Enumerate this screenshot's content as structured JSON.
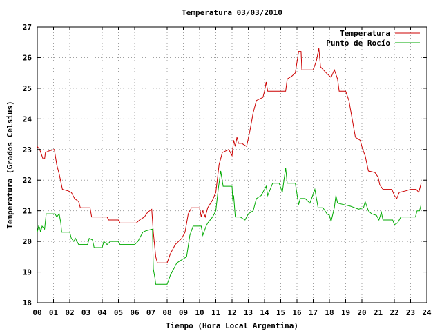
{
  "chart_data": {
    "type": "line",
    "title": "Temperatura 03/03/2010",
    "xlabel": "Tiempo (Hora Local Argentina)",
    "ylabel": "Temperatura (Grados Celsius)",
    "xlim": [
      0,
      24
    ],
    "ylim": [
      18,
      27
    ],
    "x_ticks": [
      "00",
      "01",
      "02",
      "03",
      "04",
      "05",
      "06",
      "07",
      "08",
      "09",
      "10",
      "11",
      "12",
      "13",
      "14",
      "15",
      "16",
      "17",
      "18",
      "19",
      "20",
      "21",
      "22",
      "23",
      "24"
    ],
    "y_ticks": [
      "18",
      "19",
      "20",
      "21",
      "22",
      "23",
      "24",
      "25",
      "26",
      "27"
    ],
    "grid": true,
    "legend_position": "top-right",
    "series": [
      {
        "name": "Temperatura",
        "color": "#cc0000",
        "points": [
          [
            0.0,
            23.1
          ],
          [
            0.15,
            23.0
          ],
          [
            0.35,
            22.7
          ],
          [
            0.45,
            22.7
          ],
          [
            0.5,
            22.9
          ],
          [
            0.7,
            22.95
          ],
          [
            1.05,
            23.0
          ],
          [
            1.2,
            22.5
          ],
          [
            1.35,
            22.2
          ],
          [
            1.55,
            21.7
          ],
          [
            1.9,
            21.65
          ],
          [
            2.1,
            21.6
          ],
          [
            2.3,
            21.4
          ],
          [
            2.55,
            21.3
          ],
          [
            2.65,
            21.1
          ],
          [
            3.25,
            21.1
          ],
          [
            3.35,
            20.8
          ],
          [
            4.3,
            20.8
          ],
          [
            4.4,
            20.7
          ],
          [
            5.0,
            20.7
          ],
          [
            5.1,
            20.6
          ],
          [
            6.1,
            20.6
          ],
          [
            6.3,
            20.7
          ],
          [
            6.6,
            20.8
          ],
          [
            6.8,
            20.95
          ],
          [
            7.05,
            21.05
          ],
          [
            7.15,
            20.3
          ],
          [
            7.3,
            19.5
          ],
          [
            7.4,
            19.3
          ],
          [
            8.0,
            19.3
          ],
          [
            8.2,
            19.6
          ],
          [
            8.5,
            19.9
          ],
          [
            8.9,
            20.1
          ],
          [
            9.1,
            20.3
          ],
          [
            9.3,
            20.9
          ],
          [
            9.5,
            21.1
          ],
          [
            10.0,
            21.1
          ],
          [
            10.1,
            20.8
          ],
          [
            10.2,
            21.0
          ],
          [
            10.35,
            20.8
          ],
          [
            10.5,
            21.1
          ],
          [
            10.8,
            21.35
          ],
          [
            11.0,
            21.6
          ],
          [
            11.2,
            22.5
          ],
          [
            11.4,
            22.9
          ],
          [
            11.8,
            23.0
          ],
          [
            12.0,
            22.8
          ],
          [
            12.1,
            23.3
          ],
          [
            12.2,
            23.1
          ],
          [
            12.3,
            23.4
          ],
          [
            12.4,
            23.2
          ],
          [
            12.6,
            23.2
          ],
          [
            12.9,
            23.1
          ],
          [
            13.1,
            23.6
          ],
          [
            13.3,
            24.2
          ],
          [
            13.5,
            24.6
          ],
          [
            13.9,
            24.7
          ],
          [
            14.0,
            24.9
          ],
          [
            14.1,
            25.2
          ],
          [
            14.2,
            24.9
          ],
          [
            15.3,
            24.9
          ],
          [
            15.4,
            25.3
          ],
          [
            15.7,
            25.4
          ],
          [
            15.9,
            25.5
          ],
          [
            16.1,
            26.2
          ],
          [
            16.25,
            26.2
          ],
          [
            16.3,
            25.6
          ],
          [
            17.0,
            25.6
          ],
          [
            17.2,
            25.9
          ],
          [
            17.35,
            26.3
          ],
          [
            17.45,
            25.7
          ],
          [
            17.8,
            25.5
          ],
          [
            18.1,
            25.35
          ],
          [
            18.3,
            25.6
          ],
          [
            18.5,
            25.3
          ],
          [
            18.6,
            24.9
          ],
          [
            19.0,
            24.9
          ],
          [
            19.2,
            24.6
          ],
          [
            19.4,
            24.0
          ],
          [
            19.6,
            23.4
          ],
          [
            19.9,
            23.3
          ],
          [
            20.05,
            23.0
          ],
          [
            20.2,
            22.8
          ],
          [
            20.4,
            22.3
          ],
          [
            20.8,
            22.25
          ],
          [
            21.0,
            22.1
          ],
          [
            21.1,
            21.85
          ],
          [
            21.3,
            21.7
          ],
          [
            21.85,
            21.7
          ],
          [
            22.0,
            21.5
          ],
          [
            22.15,
            21.4
          ],
          [
            22.3,
            21.6
          ],
          [
            22.7,
            21.65
          ],
          [
            23.0,
            21.7
          ],
          [
            23.35,
            21.7
          ],
          [
            23.5,
            21.6
          ],
          [
            23.65,
            21.9
          ]
        ]
      },
      {
        "name": "Punto de Rocío",
        "color": "#00aa00",
        "points": [
          [
            0.0,
            20.3
          ],
          [
            0.08,
            20.5
          ],
          [
            0.15,
            20.45
          ],
          [
            0.2,
            20.3
          ],
          [
            0.3,
            20.5
          ],
          [
            0.45,
            20.4
          ],
          [
            0.55,
            20.9
          ],
          [
            1.1,
            20.9
          ],
          [
            1.2,
            20.8
          ],
          [
            1.35,
            20.9
          ],
          [
            1.45,
            20.6
          ],
          [
            1.5,
            20.3
          ],
          [
            2.0,
            20.3
          ],
          [
            2.1,
            20.1
          ],
          [
            2.25,
            20.0
          ],
          [
            2.35,
            20.1
          ],
          [
            2.55,
            19.9
          ],
          [
            3.1,
            19.9
          ],
          [
            3.2,
            20.1
          ],
          [
            3.4,
            20.05
          ],
          [
            3.5,
            19.8
          ],
          [
            4.0,
            19.8
          ],
          [
            4.1,
            20.0
          ],
          [
            4.3,
            19.9
          ],
          [
            4.5,
            20.0
          ],
          [
            5.0,
            20.0
          ],
          [
            5.1,
            19.9
          ],
          [
            6.0,
            19.9
          ],
          [
            6.2,
            20.0
          ],
          [
            6.5,
            20.3
          ],
          [
            6.7,
            20.35
          ],
          [
            7.1,
            20.4
          ],
          [
            7.15,
            19.1
          ],
          [
            7.25,
            18.8
          ],
          [
            7.3,
            18.6
          ],
          [
            8.0,
            18.6
          ],
          [
            8.2,
            18.9
          ],
          [
            8.4,
            19.1
          ],
          [
            8.6,
            19.3
          ],
          [
            9.2,
            19.5
          ],
          [
            9.4,
            20.2
          ],
          [
            9.6,
            20.5
          ],
          [
            10.1,
            20.5
          ],
          [
            10.2,
            20.2
          ],
          [
            10.4,
            20.5
          ],
          [
            10.5,
            20.6
          ],
          [
            10.8,
            20.8
          ],
          [
            11.0,
            21.0
          ],
          [
            11.15,
            21.7
          ],
          [
            11.3,
            22.3
          ],
          [
            11.45,
            21.8
          ],
          [
            12.0,
            21.8
          ],
          [
            12.05,
            21.3
          ],
          [
            12.1,
            21.5
          ],
          [
            12.2,
            20.8
          ],
          [
            12.5,
            20.8
          ],
          [
            12.8,
            20.7
          ],
          [
            13.0,
            20.9
          ],
          [
            13.3,
            21.0
          ],
          [
            13.5,
            21.4
          ],
          [
            13.8,
            21.5
          ],
          [
            14.1,
            21.8
          ],
          [
            14.2,
            21.5
          ],
          [
            14.5,
            21.9
          ],
          [
            14.9,
            21.9
          ],
          [
            15.1,
            21.6
          ],
          [
            15.2,
            22.0
          ],
          [
            15.3,
            22.4
          ],
          [
            15.4,
            21.9
          ],
          [
            15.9,
            21.9
          ],
          [
            16.1,
            21.2
          ],
          [
            16.2,
            21.4
          ],
          [
            16.5,
            21.4
          ],
          [
            16.8,
            21.25
          ],
          [
            17.1,
            21.7
          ],
          [
            17.3,
            21.1
          ],
          [
            17.6,
            21.1
          ],
          [
            17.85,
            20.9
          ],
          [
            18.0,
            20.85
          ],
          [
            18.1,
            20.65
          ],
          [
            18.3,
            21.1
          ],
          [
            18.4,
            21.5
          ],
          [
            18.5,
            21.25
          ],
          [
            18.9,
            21.2
          ],
          [
            19.3,
            21.15
          ],
          [
            19.8,
            21.05
          ],
          [
            20.1,
            21.1
          ],
          [
            20.2,
            21.3
          ],
          [
            20.4,
            21.0
          ],
          [
            20.6,
            20.9
          ],
          [
            20.9,
            20.85
          ],
          [
            21.05,
            20.7
          ],
          [
            21.2,
            20.95
          ],
          [
            21.3,
            20.7
          ],
          [
            21.9,
            20.7
          ],
          [
            22.0,
            20.55
          ],
          [
            22.2,
            20.6
          ],
          [
            22.4,
            20.8
          ],
          [
            23.0,
            20.8
          ],
          [
            23.3,
            20.8
          ],
          [
            23.4,
            21.0
          ],
          [
            23.55,
            21.0
          ],
          [
            23.65,
            21.2
          ]
        ]
      }
    ]
  }
}
